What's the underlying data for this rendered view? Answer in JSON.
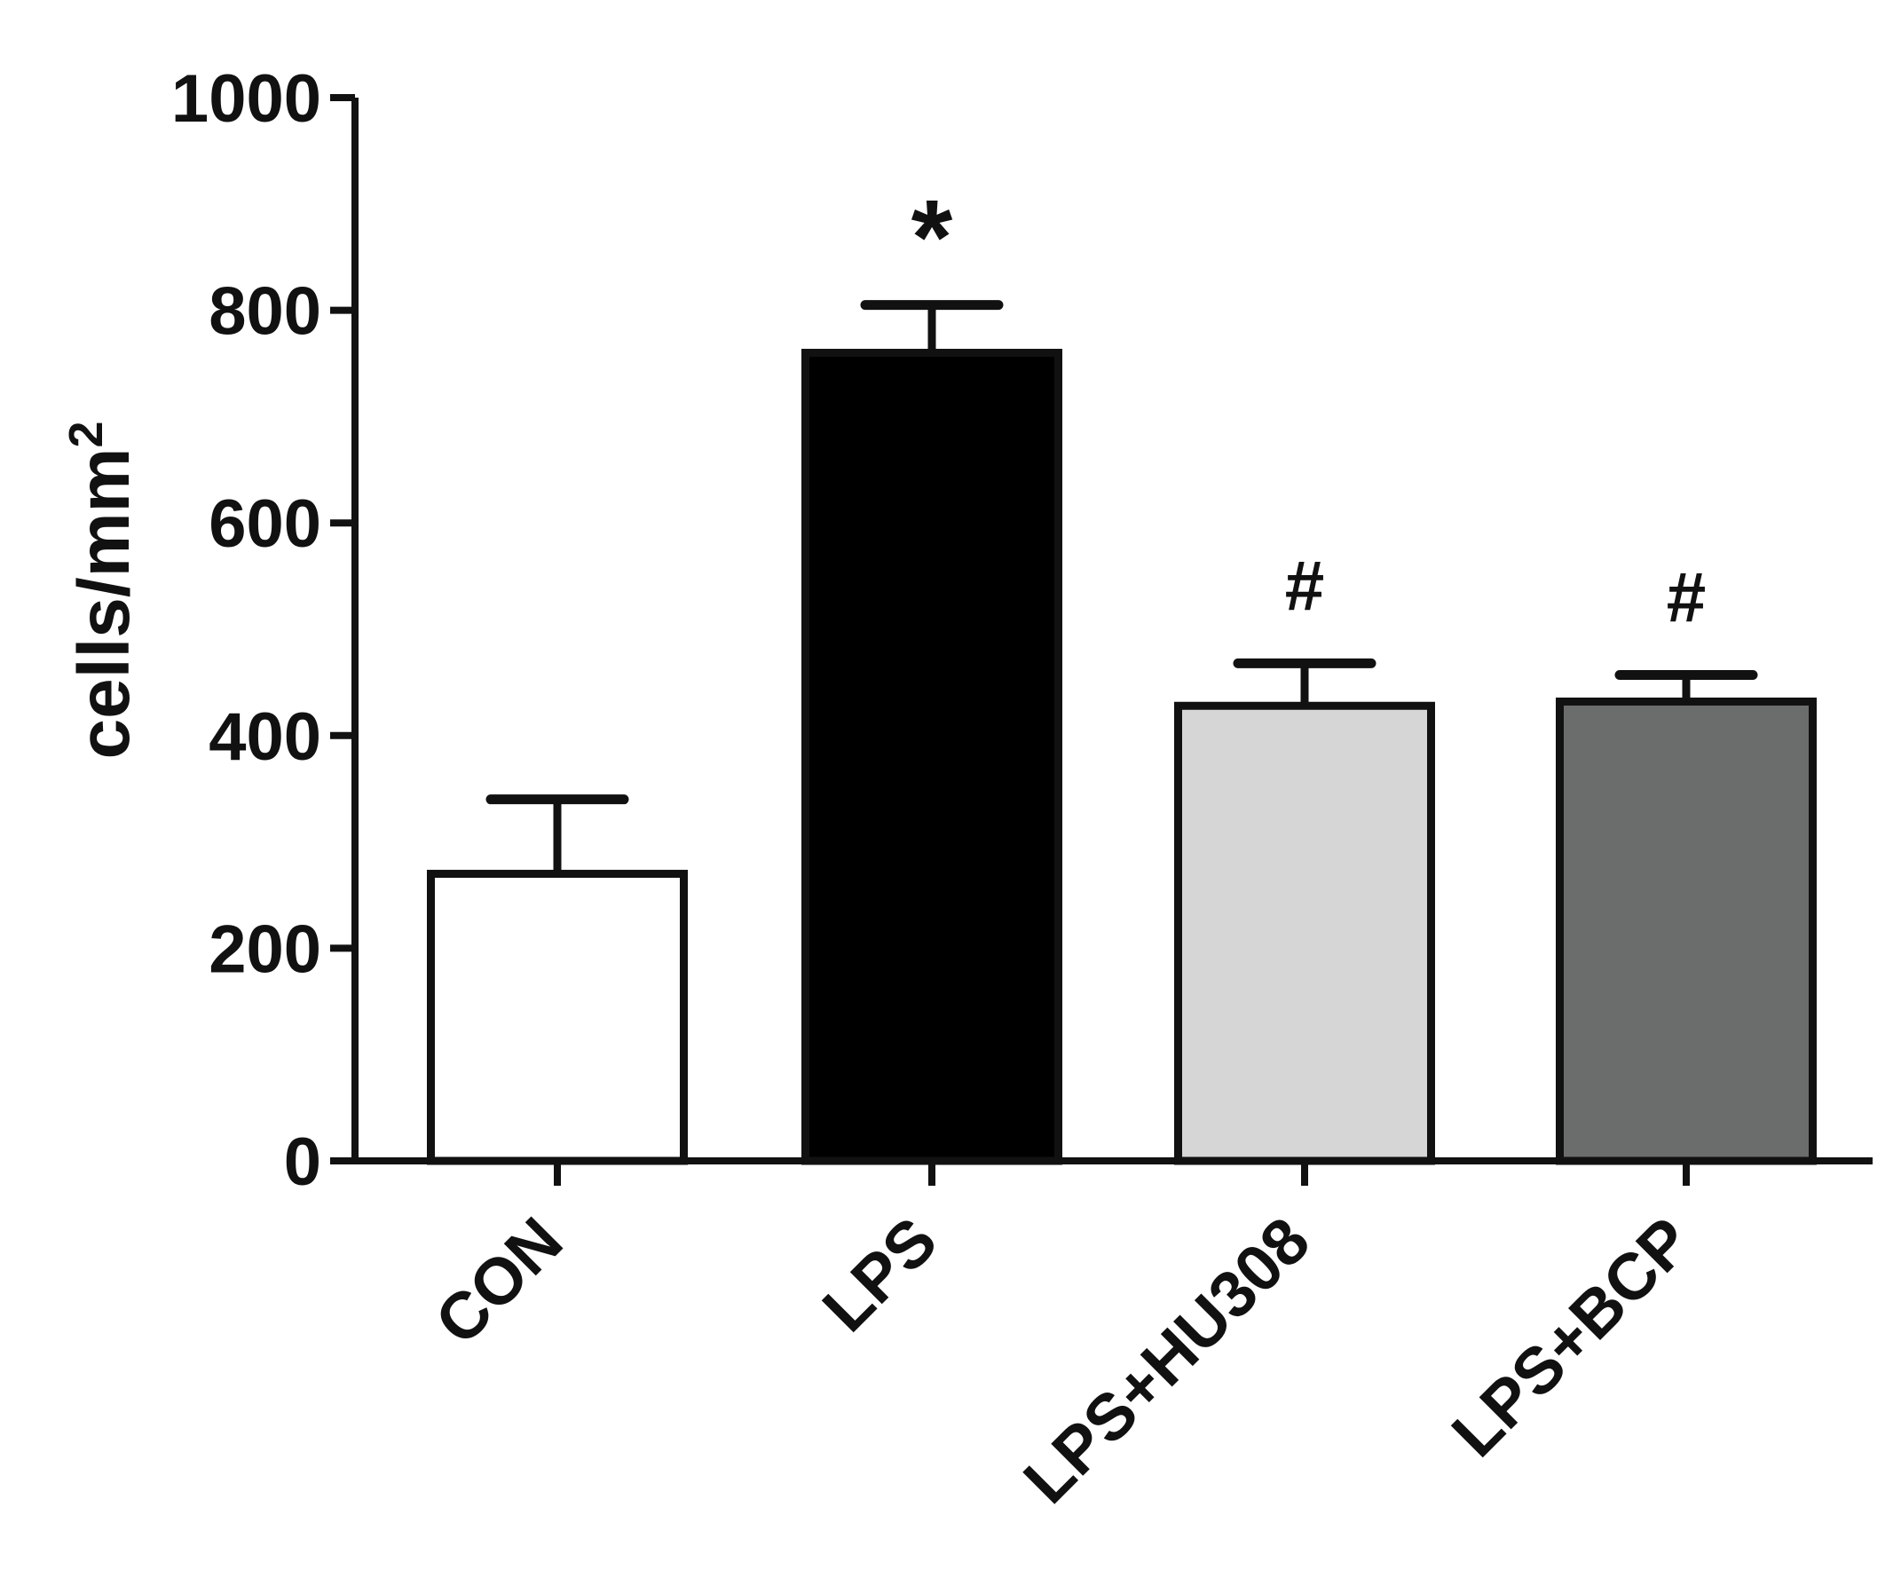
{
  "chart_data": {
    "type": "bar",
    "title": "",
    "xlabel": "",
    "ylabel_base": "cells/mm",
    "ylabel_sup": "2",
    "ylim": [
      0,
      1000
    ],
    "yticks": [
      "0",
      "200",
      "400",
      "600",
      "800",
      "1000"
    ],
    "categories": [
      "CON",
      "LPS",
      "LPS+HU308",
      "LPS+BCP"
    ],
    "values": [
      270,
      760,
      428,
      432
    ],
    "errors": [
      70,
      45,
      40,
      25
    ],
    "fills": [
      "#ffffff",
      "#000000",
      "#d6d6d6",
      "#6a6d6b"
    ],
    "annotations": [
      "",
      "*",
      "#",
      "#"
    ],
    "grid": false
  }
}
